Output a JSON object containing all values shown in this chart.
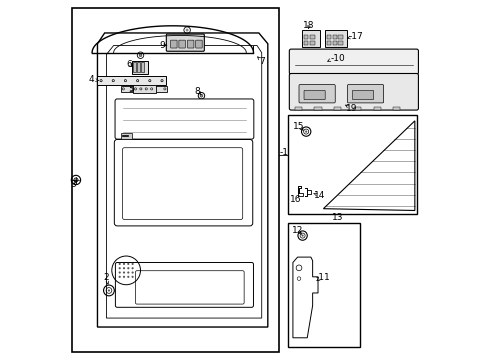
{
  "bg_color": "#ffffff",
  "line_color": "#000000",
  "text_color": "#000000"
}
